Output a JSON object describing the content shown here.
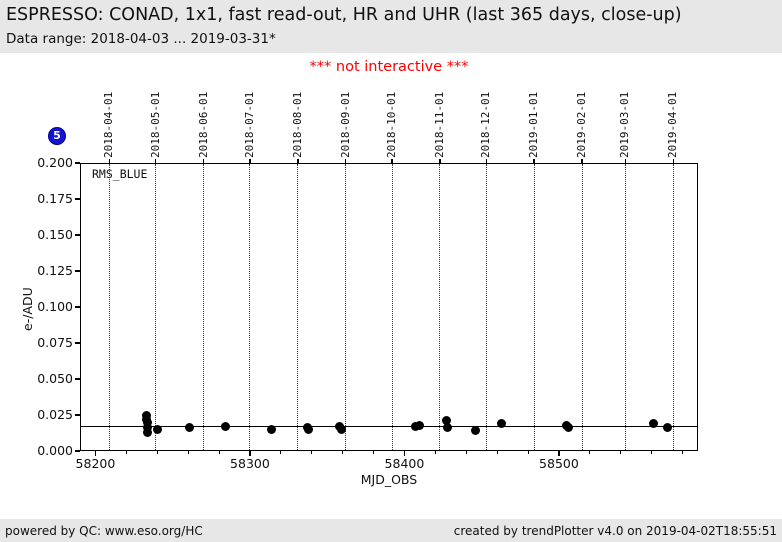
{
  "header": {
    "title": "ESPRESSO: CONAD, 1x1, fast read-out, HR and UHR (last 365 days, close-up)",
    "subtitle": "Data range: 2018-04-03 ... 2019-03-31*"
  },
  "notice": {
    "text": "*** not interactive ***",
    "color": "#ff0000"
  },
  "badge": {
    "label": "5",
    "color": "#1414d2"
  },
  "footer": {
    "left": "powered by QC: www.eso.org/HC",
    "right": "created by trendPlotter v4.0 on 2019-04-02T18:55:51"
  },
  "colors": {
    "panel_bg": "#e7e7e7",
    "marker": "#000000",
    "badge_blue": "#1414d2",
    "notice_red": "#ff0000",
    "grid": "#333333"
  },
  "chart_data": {
    "type": "scatter",
    "series_label": "RMS_BLUE",
    "xlabel": "MJD_OBS",
    "ylabel": "e-/ADU",
    "xlim": [
      58190,
      58590
    ],
    "ylim": [
      0,
      0.2
    ],
    "x_major_ticks": [
      58200,
      58300,
      58400,
      58500
    ],
    "x_minor_step": 20,
    "y_tick_step": 0.025,
    "grid": "vertical dotted lines at month boundaries (top axis)",
    "legend_position": "none",
    "reference_line_y": 0.017,
    "top_axis": {
      "labels": [
        "2018-04-01",
        "2018-05-01",
        "2018-06-01",
        "2018-07-01",
        "2018-08-01",
        "2018-09-01",
        "2018-10-01",
        "2018-11-01",
        "2018-12-01",
        "2019-01-01",
        "2019-02-01",
        "2019-03-01",
        "2019-04-01"
      ],
      "mjd": [
        58209,
        58239,
        58270,
        58300,
        58331,
        58362,
        58392,
        58423,
        58453,
        58484,
        58515,
        58543,
        58574
      ]
    },
    "points": [
      [
        58233,
        0.025
      ],
      [
        58233,
        0.022
      ],
      [
        58234,
        0.02
      ],
      [
        58234,
        0.016
      ],
      [
        58234,
        0.013
      ],
      [
        58240,
        0.015
      ],
      [
        58261,
        0.016
      ],
      [
        58284,
        0.017
      ],
      [
        58314,
        0.015
      ],
      [
        58337,
        0.016
      ],
      [
        58338,
        0.015
      ],
      [
        58358,
        0.017
      ],
      [
        58359,
        0.015
      ],
      [
        58407,
        0.017
      ],
      [
        58410,
        0.018
      ],
      [
        58427,
        0.021
      ],
      [
        58428,
        0.016
      ],
      [
        58446,
        0.014
      ],
      [
        58463,
        0.019
      ],
      [
        58505,
        0.018
      ],
      [
        58506,
        0.016
      ],
      [
        58561,
        0.019
      ],
      [
        58570,
        0.016
      ]
    ]
  }
}
